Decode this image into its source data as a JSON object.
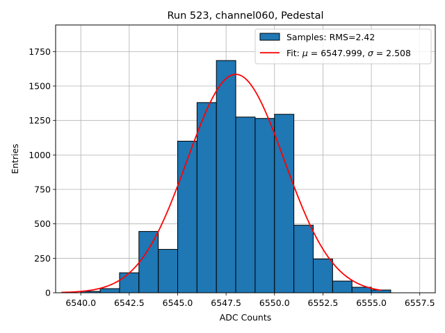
{
  "chart_data": {
    "type": "bar",
    "title": "Run 523, channel060, Pedestal",
    "xlabel": "ADC Counts",
    "ylabel": "Entries",
    "xlim": [
      6538.7,
      6558.3
    ],
    "ylim": [
      0,
      1943
    ],
    "grid": true,
    "legend_position": "top-right",
    "x_ticks": [
      6540.0,
      6542.5,
      6545.0,
      6547.5,
      6550.0,
      6552.5,
      6555.0,
      6557.5
    ],
    "x_tick_labels": [
      "6540.0",
      "6542.5",
      "6545.0",
      "6547.5",
      "6550.0",
      "6552.5",
      "6555.0",
      "6557.5"
    ],
    "y_ticks": [
      0,
      250,
      500,
      750,
      1000,
      1250,
      1500,
      1750
    ],
    "y_tick_labels": [
      "0",
      "250",
      "500",
      "750",
      "1000",
      "1250",
      "1500",
      "1750"
    ],
    "series": [
      {
        "name": "Samples: RMS=2.42",
        "kind": "histogram",
        "color": "#1f77b4",
        "edge_color": "#000000",
        "bin_edges": [
          6540,
          6541,
          6542,
          6543,
          6544,
          6545,
          6546,
          6547,
          6548,
          6549,
          6550,
          6551,
          6552,
          6553,
          6554,
          6555,
          6556
        ],
        "counts": [
          10,
          30,
          145,
          445,
          315,
          1100,
          1380,
          1685,
          1275,
          1265,
          1295,
          490,
          245,
          85,
          40,
          20
        ]
      },
      {
        "name": "Fit: μ = 6547.999, σ = 2.508",
        "kind": "gaussian-fit",
        "color": "#ff0000",
        "mu": 6547.999,
        "sigma": 2.508,
        "amplitude": 1585,
        "x_range": [
          6539.0,
          6555.5
        ]
      }
    ],
    "legend": [
      {
        "label_prefix": "Samples: RMS=2.42",
        "label_suffix": ""
      },
      {
        "label_prefix": "Fit: ",
        "label_mu": "μ",
        "label_mid": " = 6547.999, ",
        "label_sigma": "σ",
        "label_end": " = 2.508"
      }
    ]
  }
}
